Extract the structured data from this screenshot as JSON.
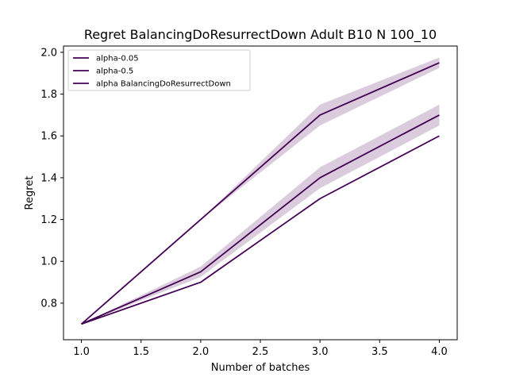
{
  "chart_data": {
    "type": "line",
    "title": "Regret BalancingDoResurrectDown Adult B10 N 100_10",
    "xlabel": "Number of batches",
    "ylabel": "Regret",
    "xlim": [
      0.85,
      4.15
    ],
    "ylim": [
      0.625,
      2.03
    ],
    "xticks": [
      1.0,
      1.5,
      2.0,
      2.5,
      3.0,
      3.5,
      4.0
    ],
    "xtick_labels": [
      "1.0",
      "1.5",
      "2.0",
      "2.5",
      "3.0",
      "3.5",
      "4.0"
    ],
    "yticks": [
      0.8,
      1.0,
      1.2,
      1.4,
      1.6,
      1.8,
      2.0
    ],
    "ytick_labels": [
      "0.8",
      "1.0",
      "1.2",
      "1.4",
      "1.6",
      "1.8",
      "2.0"
    ],
    "grid": false,
    "legend_position": "top-left",
    "x": [
      1,
      2,
      3,
      4
    ],
    "series": [
      {
        "name": "alpha-0.05",
        "values": [
          0.7,
          1.2,
          1.7,
          1.95
        ],
        "lower": [
          0.7,
          1.2,
          1.65,
          1.925
        ],
        "upper": [
          0.7,
          1.2,
          1.75,
          1.975
        ],
        "color": "#440154"
      },
      {
        "name": "alpha-0.5",
        "values": [
          0.7,
          0.95,
          1.4,
          1.7
        ],
        "lower": [
          0.7,
          0.925,
          1.35,
          1.65
        ],
        "upper": [
          0.7,
          0.975,
          1.45,
          1.75
        ],
        "color": "#440154"
      },
      {
        "name": "alpha BalancingDoResurrectDown",
        "values": [
          0.7,
          0.9,
          1.3,
          1.6
        ],
        "color": "#440154"
      }
    ],
    "band_color": "#440154",
    "band_opacity": 0.2
  }
}
